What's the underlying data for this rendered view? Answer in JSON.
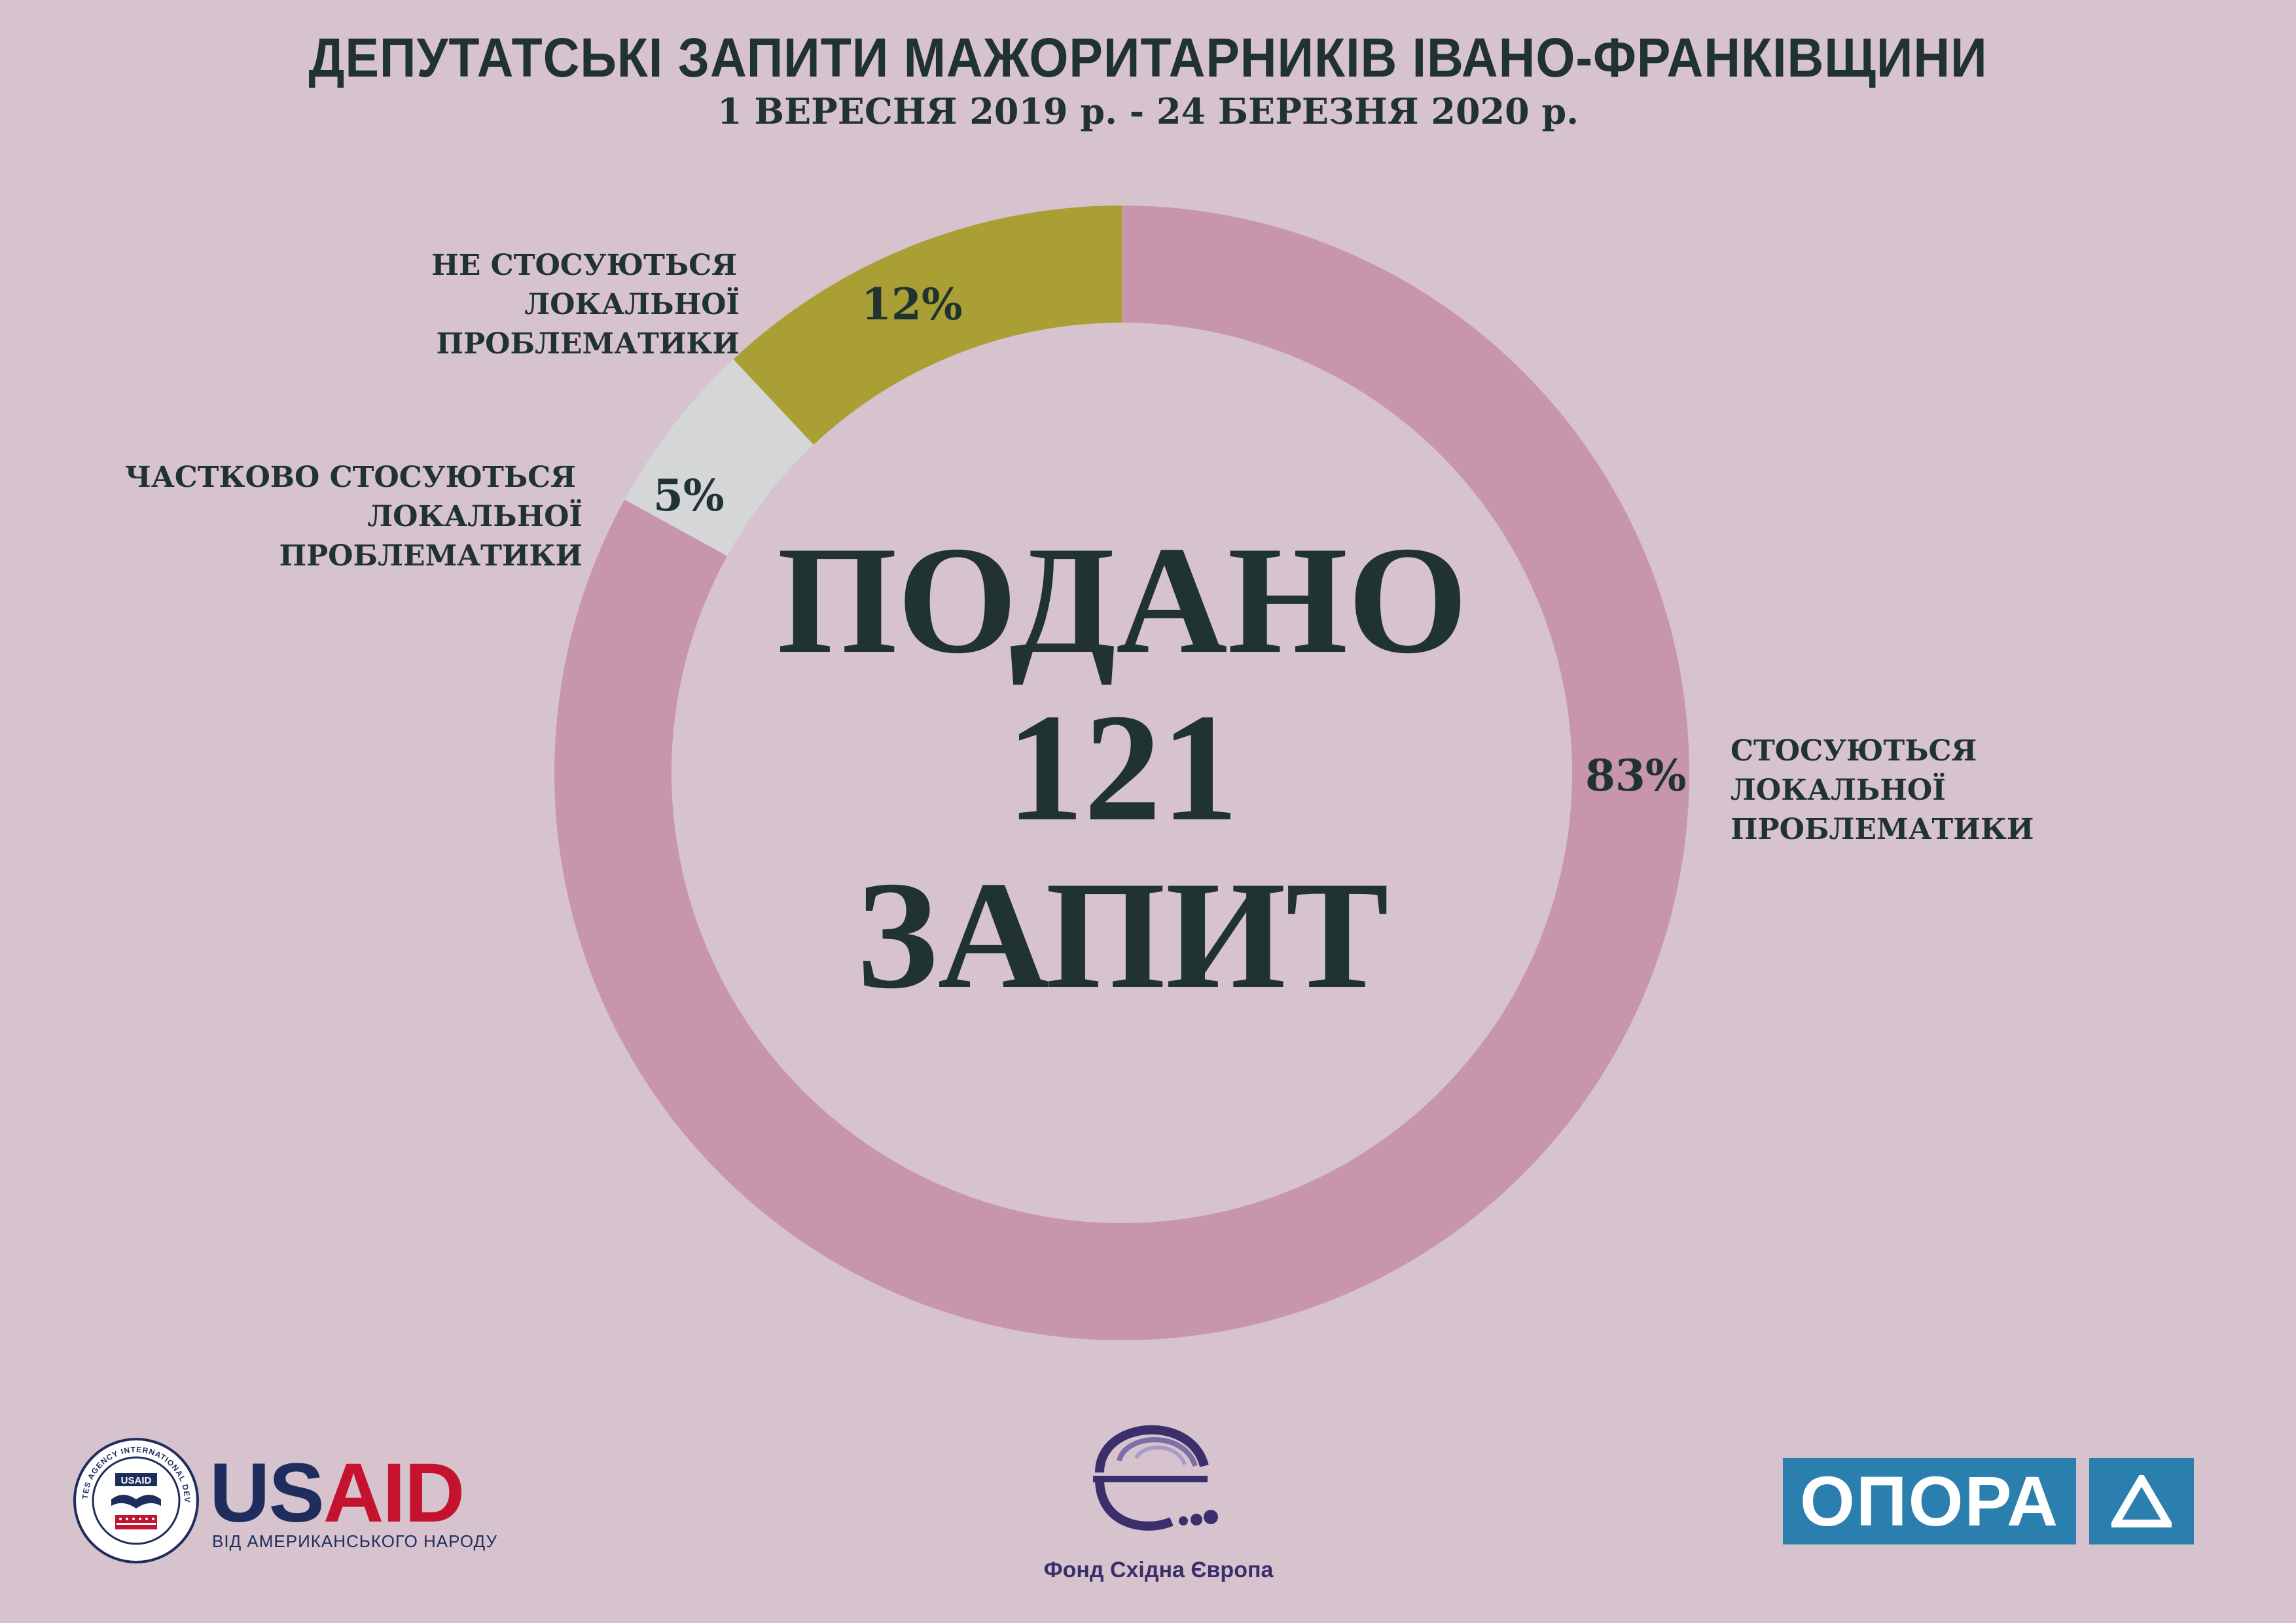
{
  "header": {
    "title": "ДЕПУТАТСЬКІ ЗАПИТИ  МАЖОРИТАРНИКІВ ІВАНО-ФРАНКІВЩИНИ",
    "subtitle": "1 ВЕРЕСНЯ 2019 р. - 24  БЕРЕЗНЯ 2020 р."
  },
  "center": {
    "line1": "ПОДАНО",
    "line2": "121",
    "line3": "ЗАПИТ"
  },
  "chart_data": {
    "type": "pie",
    "style": "donut",
    "title": "ДЕПУТАТСЬКІ ЗАПИТИ  МАЖОРИТАРНИКІВ ІВАНО-ФРАНКІВЩИНИ",
    "subtitle": "1 ВЕРЕСНЯ 2019 р. - 24  БЕРЕЗНЯ 2020 р.",
    "total": 121,
    "slices": [
      {
        "label_line1": "СТОСУЮТЬСЯ",
        "label_line2": "ЛОКАЛЬНОЇ ПРОБЛЕМАТИКИ",
        "value": 83,
        "value_label": "83%",
        "color": "#c896ab"
      },
      {
        "label_line1": "ЧАСТКОВО СТОСУЮТЬСЯ",
        "label_line2": "ЛОКАЛЬНОЇ ПРОБЛЕМАТИКИ",
        "value": 5,
        "value_label": "5%",
        "color": "#d4d6d8"
      },
      {
        "label_line1": "НЕ СТОСУЮТЬСЯ",
        "label_line2": "ЛОКАЛЬНОЇ ПРОБЛЕМАТИКИ",
        "value": 12,
        "value_label": "12%",
        "color": "#a99f35"
      }
    ]
  },
  "footer": {
    "usaid": {
      "name": "USAID",
      "tagline": "ВІД АМЕРИКАНСЬКОГО НАРОДУ",
      "seal_text": "UNITED STATES AGENCY INTERNATIONAL DEVELOPMENT",
      "seal_center": "USAID",
      "colors": {
        "blue": "#1f2d5e",
        "red": "#c4122f"
      }
    },
    "fond": {
      "name": "Фонд Східна Європа",
      "color": "#3a2f6b"
    },
    "opora": {
      "name": "ОПОРА",
      "color": "#2a7fae"
    }
  }
}
